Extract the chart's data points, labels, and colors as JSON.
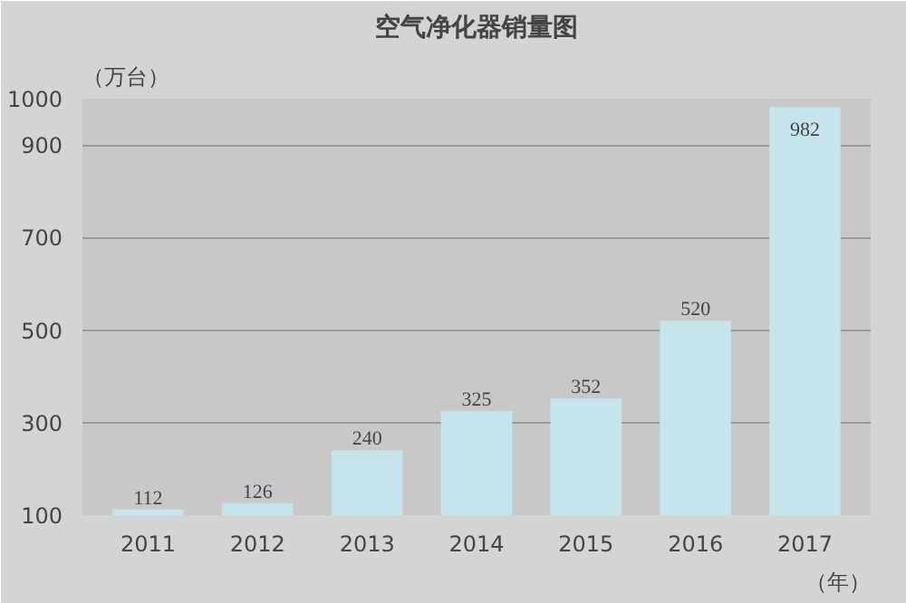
{
  "chart_data": {
    "type": "bar",
    "title": "空气净化器销量图",
    "ylabel": "（万台）",
    "xlabel": "（年）",
    "categories": [
      "2011",
      "2012",
      "2013",
      "2014",
      "2015",
      "2016",
      "2017"
    ],
    "values": [
      112,
      126,
      240,
      325,
      352,
      520,
      982
    ],
    "color": "#c5e4ec",
    "ylim": [
      100,
      1000
    ],
    "yticks": [
      100,
      300,
      500,
      700,
      900,
      1000
    ],
    "grid": "y",
    "data_labels": true
  }
}
